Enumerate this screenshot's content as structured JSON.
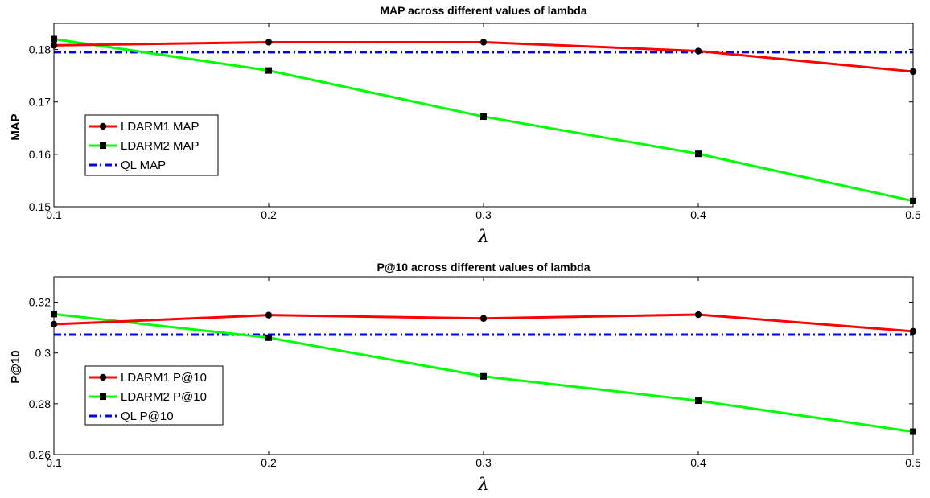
{
  "chart_data": [
    {
      "type": "line",
      "title": "MAP across different values of lambda",
      "xlabel": "λ",
      "ylabel": "MAP",
      "x": [
        0.1,
        0.2,
        0.3,
        0.4,
        0.5
      ],
      "xlim": [
        0.1,
        0.5
      ],
      "ylim": [
        0.15,
        0.185
      ],
      "xticks": [
        "0.1",
        "0.2",
        "0.3",
        "0.4",
        "0.5"
      ],
      "yticks": [
        {
          "value": 0.15,
          "label": "0.15"
        },
        {
          "value": 0.16,
          "label": "0.16"
        },
        {
          "value": 0.17,
          "label": "0.17"
        },
        {
          "value": 0.18,
          "label": "0.18"
        }
      ],
      "grid": false,
      "legend_position": "left",
      "series": [
        {
          "name": "LDARM1 MAP",
          "color": "#ff0000",
          "marker": "circle",
          "dash": "solid",
          "values": [
            0.1808,
            0.1814,
            0.1814,
            0.1797,
            0.1758
          ]
        },
        {
          "name": "LDARM2 MAP",
          "color": "#00ff00",
          "marker": "square",
          "dash": "solid",
          "values": [
            0.182,
            0.176,
            0.1672,
            0.1601,
            0.1511
          ]
        },
        {
          "name": "QL MAP",
          "color": "#0000ff",
          "marker": "none",
          "dash": "dashdot",
          "values": [
            0.1795,
            0.1795,
            0.1795,
            0.1795,
            0.1795
          ]
        }
      ]
    },
    {
      "type": "line",
      "title": "P@10 across different values of lambda",
      "xlabel": "λ",
      "ylabel": "P@10",
      "x": [
        0.1,
        0.2,
        0.3,
        0.4,
        0.5
      ],
      "xlim": [
        0.1,
        0.5
      ],
      "ylim": [
        0.26,
        0.33
      ],
      "xticks": [
        "0.1",
        "0.2",
        "0.3",
        "0.4",
        "0.5"
      ],
      "yticks": [
        {
          "value": 0.26,
          "label": "0.26"
        },
        {
          "value": 0.28,
          "label": "0.28"
        },
        {
          "value": 0.3,
          "label": "0.3"
        },
        {
          "value": 0.32,
          "label": "0.32"
        }
      ],
      "grid": false,
      "legend_position": "left",
      "series": [
        {
          "name": "LDARM1 P@10",
          "color": "#ff0000",
          "marker": "circle",
          "dash": "solid",
          "values": [
            0.3113,
            0.3149,
            0.3136,
            0.3151,
            0.3085
          ]
        },
        {
          "name": "LDARM2 P@10",
          "color": "#00ff00",
          "marker": "square",
          "dash": "solid",
          "values": [
            0.3153,
            0.306,
            0.2908,
            0.2812,
            0.269
          ]
        },
        {
          "name": "QL P@10",
          "color": "#0000ff",
          "marker": "none",
          "dash": "dashdot",
          "values": [
            0.3072,
            0.3072,
            0.3072,
            0.3072,
            0.3072
          ]
        }
      ]
    }
  ]
}
